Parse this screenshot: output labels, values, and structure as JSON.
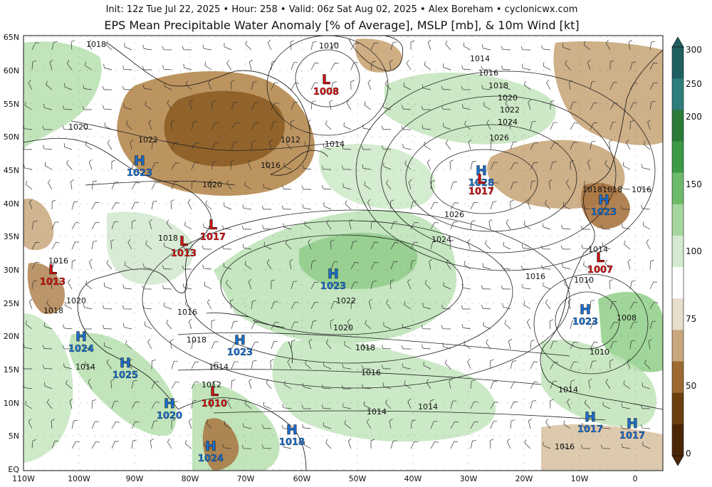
{
  "header": {
    "subtitle": "Init: 12z Tue Jul 22, 2025  •  Hour: 258  •  Valid: 06z Sat Aug 02, 2025  •  Alex Boreham  •  cyclonicwx.com",
    "title": "EPS Mean Precipitable Water Anomaly [% of Average], MSLP [mb], & 10m Wind [kt]"
  },
  "axes": {
    "lat_labels": [
      "65N",
      "60N",
      "55N",
      "50N",
      "45N",
      "40N",
      "35N",
      "30N",
      "25N",
      "20N",
      "15N",
      "10N",
      "5N",
      "EQ"
    ],
    "lon_labels": [
      "110W",
      "100W",
      "90W",
      "80W",
      "70W",
      "60W",
      "50W",
      "40W",
      "30W",
      "20W",
      "10W",
      "0"
    ]
  },
  "colorbar": {
    "ticks": [
      "300",
      "250",
      "200",
      "150",
      "100",
      "75",
      "50",
      "0"
    ],
    "colors": [
      "#1f5f62",
      "#2e7d7c",
      "#2b7a3a",
      "#3d9a47",
      "#6dbb6a",
      "#a7d7a0",
      "#d4ead0",
      "#ffffff",
      "#e8dccb",
      "#c9a77c",
      "#9c6a2e",
      "#6e3f0e",
      "#4a2506"
    ]
  },
  "isobar_labels": [
    "1018",
    "1010",
    "1014",
    "1016",
    "1018",
    "1020",
    "1022",
    "1024",
    "1026",
    "1020",
    "1022",
    "1012",
    "1014",
    "1016",
    "1020",
    "1018",
    "1018",
    "1016",
    "1020",
    "1018",
    "1016",
    "1014",
    "1012",
    "1018",
    "1016",
    "1018",
    "1014",
    "1010",
    "1008",
    "1010",
    "1014",
    "1016",
    "1024",
    "1026",
    "1022",
    "1020",
    "1018",
    "1016",
    "1014",
    "1014",
    "1014",
    "1016"
  ],
  "systems": [
    {
      "type": "L",
      "value": "1008"
    },
    {
      "type": "H",
      "value": "1023"
    },
    {
      "type": "H",
      "value": "1028"
    },
    {
      "type": "L",
      "value": "1017"
    },
    {
      "type": "L",
      "value": "1017"
    },
    {
      "type": "L",
      "value": "1013"
    },
    {
      "type": "L",
      "value": "1013"
    },
    {
      "type": "H",
      "value": "1023"
    },
    {
      "type": "H",
      "value": "1023"
    },
    {
      "type": "H",
      "value": "1023"
    },
    {
      "type": "L",
      "value": "1007"
    },
    {
      "type": "H",
      "value": "1023"
    },
    {
      "type": "H",
      "value": "1024"
    },
    {
      "type": "H",
      "value": "1025"
    },
    {
      "type": "H",
      "value": "1020"
    },
    {
      "type": "L",
      "value": "1010"
    },
    {
      "type": "H",
      "value": "1018"
    },
    {
      "type": "H",
      "value": "1024"
    },
    {
      "type": "H",
      "value": "1017"
    },
    {
      "type": "H",
      "value": "1017"
    }
  ]
}
